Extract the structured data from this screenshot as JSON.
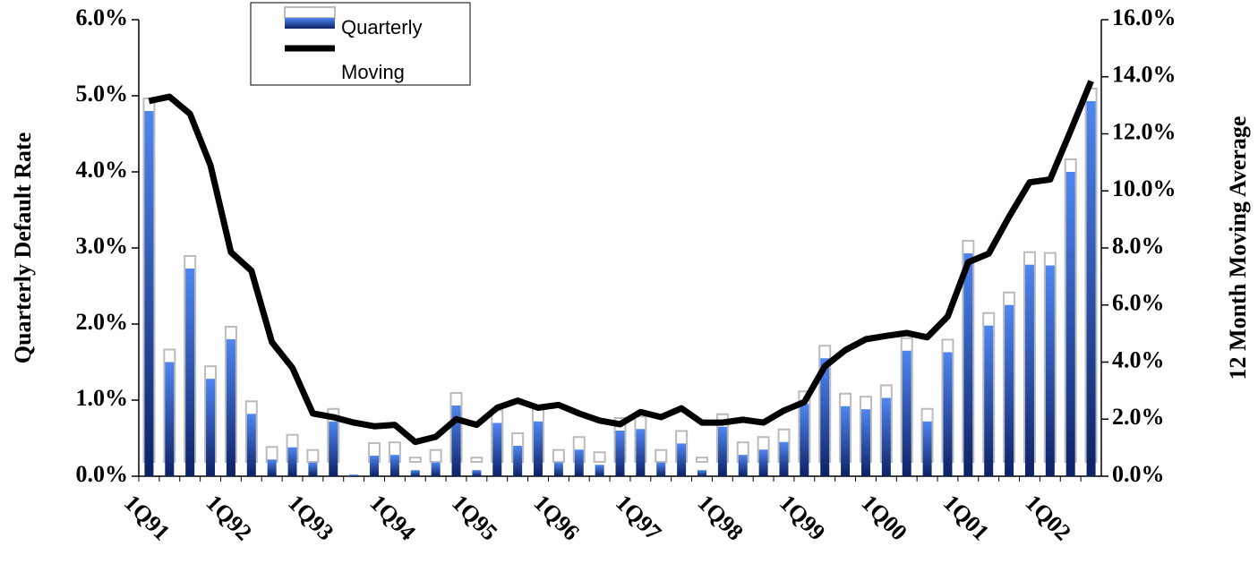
{
  "chart_data": {
    "type": "bar_line",
    "y_label": "Quarterly Default Rate",
    "y2_label": "12 Month Moving Average",
    "categories": [
      "1Q91",
      null,
      null,
      null,
      "1Q92",
      null,
      null,
      null,
      "1Q93",
      null,
      null,
      null,
      "1Q94",
      null,
      null,
      null,
      "1Q95",
      null,
      null,
      null,
      "1Q96",
      null,
      null,
      null,
      "1Q97",
      null,
      null,
      null,
      "1Q98",
      null,
      null,
      null,
      "1Q99",
      null,
      null,
      null,
      "1Q00",
      null,
      null,
      null,
      "1Q01",
      null,
      null,
      null,
      "1Q02",
      null,
      null
    ],
    "series": [
      {
        "name": "Quarterly",
        "type": "bar",
        "color": "#3d74e6",
        "values": [
          4.8,
          1.5,
          2.73,
          1.28,
          1.8,
          0.82,
          0.22,
          0.38,
          0.18,
          0.72,
          0.02,
          0.27,
          0.28,
          0.08,
          0.18,
          0.93,
          0.08,
          0.7,
          0.4,
          0.72,
          0.18,
          0.35,
          0.15,
          0.6,
          0.62,
          0.18,
          0.43,
          0.08,
          0.65,
          0.28,
          0.35,
          0.45,
          0.95,
          1.55,
          0.92,
          0.88,
          1.03,
          1.65,
          0.72,
          1.63,
          2.93,
          1.98,
          2.25,
          2.78,
          2.77,
          4.0,
          4.93
        ]
      },
      {
        "name": "Moving",
        "type": "line",
        "axis": "y2",
        "color": "#000000",
        "values": [
          13.15,
          13.3,
          12.7,
          10.9,
          7.85,
          7.2,
          4.7,
          3.8,
          2.2,
          2.07,
          1.88,
          1.75,
          1.8,
          1.2,
          1.38,
          2.0,
          1.8,
          2.4,
          2.65,
          2.4,
          2.5,
          2.2,
          1.95,
          1.82,
          2.25,
          2.07,
          2.38,
          1.88,
          1.88,
          1.98,
          1.88,
          2.3,
          2.6,
          3.85,
          4.42,
          4.8,
          4.92,
          5.02,
          4.87,
          5.6,
          7.5,
          7.8,
          9.1,
          10.3,
          10.4,
          12.1,
          13.85
        ]
      }
    ],
    "ylim": [
      0,
      6
    ],
    "yticks": [
      {
        "value": 0,
        "label": "0.0%"
      },
      {
        "value": 1,
        "label": "1.0%"
      },
      {
        "value": 2,
        "label": "2.0%"
      },
      {
        "value": 3,
        "label": "3.0%"
      },
      {
        "value": 4,
        "label": "4.0%"
      },
      {
        "value": 5,
        "label": "5.0%"
      },
      {
        "value": 6,
        "label": "6.0%"
      }
    ],
    "y2lim": [
      0,
      16
    ],
    "y2ticks": [
      {
        "value": 0,
        "label": "0.0%"
      },
      {
        "value": 2,
        "label": "2.0%"
      },
      {
        "value": 4,
        "label": "4.0%"
      },
      {
        "value": 6,
        "label": "6.0%"
      },
      {
        "value": 8,
        "label": "8.0%"
      },
      {
        "value": 10,
        "label": "10.0%"
      },
      {
        "value": 12,
        "label": "12.0%"
      },
      {
        "value": 14,
        "label": "14.0%"
      },
      {
        "value": 16,
        "label": "16.0%"
      }
    ],
    "legend": "top-left"
  }
}
